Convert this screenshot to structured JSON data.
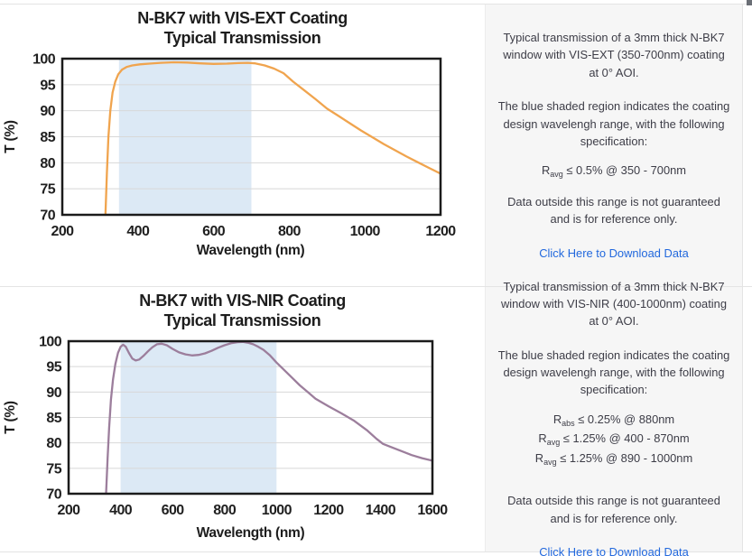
{
  "colors": {
    "link": "#2268dd",
    "panel_background": "#f6f6f6",
    "border": "#e4e4e4",
    "text": "#3d3d47",
    "vis_ext_series": "#f0a44e",
    "vis_nir_series": "#9c7e9c",
    "shaded_region": "#dce9f5"
  },
  "chart_data": [
    {
      "type": "line",
      "title": "N-BK7 with VIS-EXT Coating",
      "subtitle": "Typical Transmission",
      "xlabel": "Wavelength (nm)",
      "ylabel": "T (%)",
      "xlim": [
        200,
        1200
      ],
      "ylim": [
        70,
        100
      ],
      "xticks": [
        200,
        400,
        600,
        800,
        1000,
        1200
      ],
      "yticks": [
        70,
        75,
        80,
        85,
        90,
        95,
        100
      ],
      "grid": "horizontal",
      "grid_color": "#d8d8d8",
      "frame_color": "#1b1b1b",
      "shaded_region": {
        "x0": 350,
        "x1": 700,
        "color": "#dce9f5"
      },
      "series": [
        {
          "name": "VIS-EXT transmission",
          "color": "#f0a44e",
          "x": [
            314,
            318,
            322,
            327,
            333,
            340,
            348,
            358,
            370,
            385,
            405,
            430,
            460,
            495,
            530,
            565,
            600,
            635,
            665,
            690,
            710,
            735,
            760,
            785,
            810,
            840,
            870,
            900,
            930,
            960,
            990,
            1020,
            1050,
            1080,
            1110,
            1140,
            1170,
            1200
          ],
          "y": [
            70,
            78,
            85,
            90,
            93.5,
            95.6,
            97.0,
            97.9,
            98.4,
            98.7,
            98.9,
            99.05,
            99.2,
            99.3,
            99.25,
            99.1,
            99.0,
            99.05,
            99.15,
            99.2,
            99.1,
            98.7,
            98.1,
            97.2,
            95.6,
            93.9,
            92.2,
            90.4,
            89.0,
            87.6,
            86.2,
            84.9,
            83.6,
            82.4,
            81.2,
            80.1,
            79.0,
            77.9
          ]
        }
      ]
    },
    {
      "type": "line",
      "title": "N-BK7 with VIS-NIR Coating",
      "subtitle": "Typical Transmission",
      "xlabel": "Wavelength (nm)",
      "ylabel": "T (%)",
      "xlim": [
        200,
        1600
      ],
      "ylim": [
        70,
        100
      ],
      "xticks": [
        200,
        400,
        600,
        800,
        1000,
        1200,
        1400,
        1600
      ],
      "yticks": [
        70,
        75,
        80,
        85,
        90,
        95,
        100
      ],
      "grid": "horizontal",
      "grid_color": "#d8d8d8",
      "frame_color": "#1b1b1b",
      "shaded_region": {
        "x0": 400,
        "x1": 1000,
        "color": "#dce9f5"
      },
      "series": [
        {
          "name": "VIS-NIR transmission",
          "color": "#9c7e9c",
          "x": [
            344,
            350,
            356,
            363,
            371,
            380,
            390,
            400,
            410,
            420,
            432,
            445,
            458,
            472,
            488,
            505,
            522,
            540,
            558,
            578,
            600,
            625,
            650,
            675,
            700,
            725,
            750,
            775,
            800,
            825,
            850,
            870,
            890,
            910,
            930,
            950,
            975,
            1000,
            1030,
            1060,
            1090,
            1120,
            1150,
            1200,
            1250,
            1300,
            1350,
            1385,
            1410,
            1440,
            1480,
            1520,
            1560,
            1600
          ],
          "y": [
            70,
            77,
            83,
            88.5,
            92.5,
            95.5,
            97.7,
            98.9,
            99.3,
            98.9,
            97.7,
            96.6,
            96.2,
            96.4,
            97.1,
            98.0,
            98.8,
            99.4,
            99.5,
            99.2,
            98.5,
            97.8,
            97.4,
            97.2,
            97.3,
            97.6,
            98.1,
            98.7,
            99.2,
            99.6,
            99.8,
            99.85,
            99.7,
            99.4,
            98.9,
            98.3,
            97.2,
            95.8,
            94.3,
            92.8,
            91.3,
            90.0,
            88.7,
            87.2,
            85.8,
            84.3,
            82.4,
            80.8,
            79.8,
            79.2,
            78.4,
            77.6,
            77.0,
            76.5
          ]
        }
      ]
    }
  ],
  "sections": [
    {
      "panel": {
        "intro": "Typical transmission of a 3mm thick N-BK7 window with VIS-EXT (350-700nm) coating at 0° AOI.",
        "shaded_note": "The blue shaded region indicates the coating design wavelengh range, with the following specification:",
        "specs": [
          {
            "symbol": "R",
            "sub": "avg",
            "text": "≤ 0.5% @ 350 - 700nm"
          }
        ],
        "disclaimer": "Data outside this range is not guaranteed and is for reference only.",
        "link_label": "Click Here to Download Data"
      }
    },
    {
      "panel": {
        "intro": "Typical transmission of a 3mm thick N-BK7 window with VIS-NIR (400-1000nm) coating at 0° AOI.",
        "shaded_note": "The blue shaded region indicates the coating design wavelengh range, with the following specification:",
        "specs": [
          {
            "symbol": "R",
            "sub": "abs",
            "text": "≤ 0.25% @ 880nm"
          },
          {
            "symbol": "R",
            "sub": "avg",
            "text": "≤ 1.25% @ 400 - 870nm"
          },
          {
            "symbol": "R",
            "sub": "avg",
            "text": "≤ 1.25% @ 890 - 1000nm"
          }
        ],
        "disclaimer": "Data outside this range is not guaranteed and is for reference only.",
        "link_label": "Click Here to Download Data"
      }
    }
  ]
}
